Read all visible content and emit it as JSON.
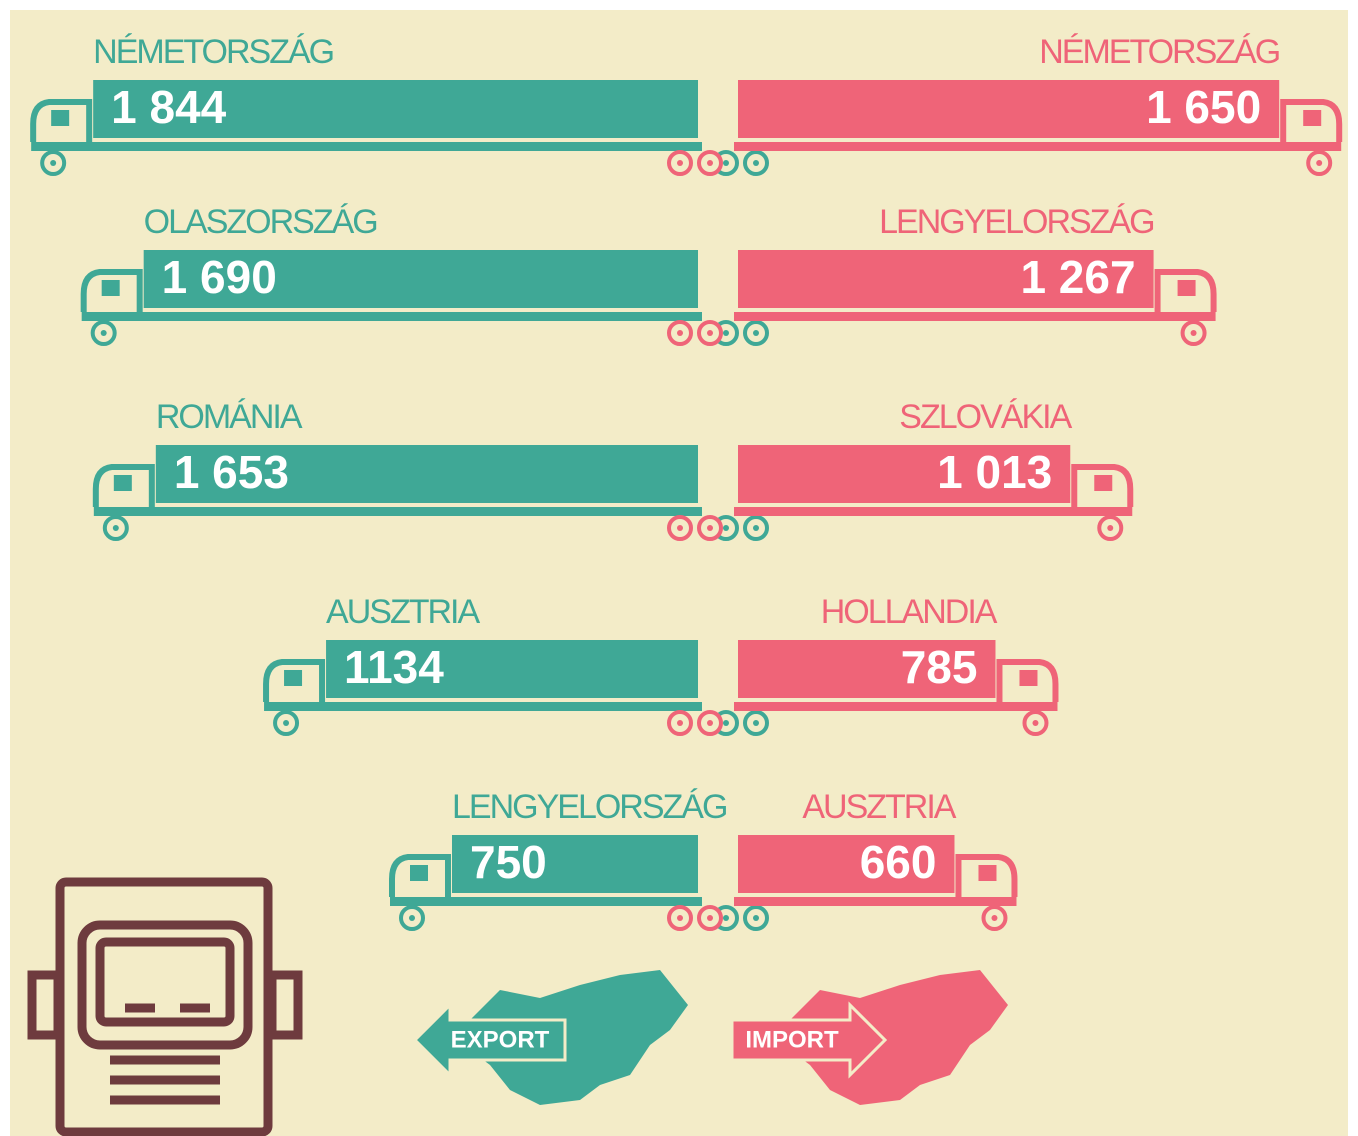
{
  "chart_data": [
    {
      "type": "bar",
      "categories": [
        "NÉMETORSZÁG",
        "OLASZORSZÁG",
        "ROMÁNIA",
        "AUSZTRIA",
        "LENGYELORSZÁG"
      ],
      "series": [
        {
          "name": "EXPORT",
          "color": "#3fa896",
          "values": [
            1844,
            1690,
            1653,
            1134,
            750
          ],
          "value_labels": [
            "1 844",
            "1 690",
            "1 653",
            "1134",
            "750"
          ]
        }
      ]
    },
    {
      "type": "bar",
      "categories": [
        "NÉMETORSZÁG",
        "LENGYELORSZÁG",
        "SZLOVÁKIA",
        "HOLLANDIA",
        "AUSZTRIA"
      ],
      "series": [
        {
          "name": "IMPORT",
          "color": "#ef6478",
          "values": [
            1650,
            1267,
            1013,
            785,
            660
          ],
          "value_labels": [
            "1 650",
            "1 267",
            "1 013",
            "785",
            "660"
          ]
        }
      ]
    }
  ]
}
